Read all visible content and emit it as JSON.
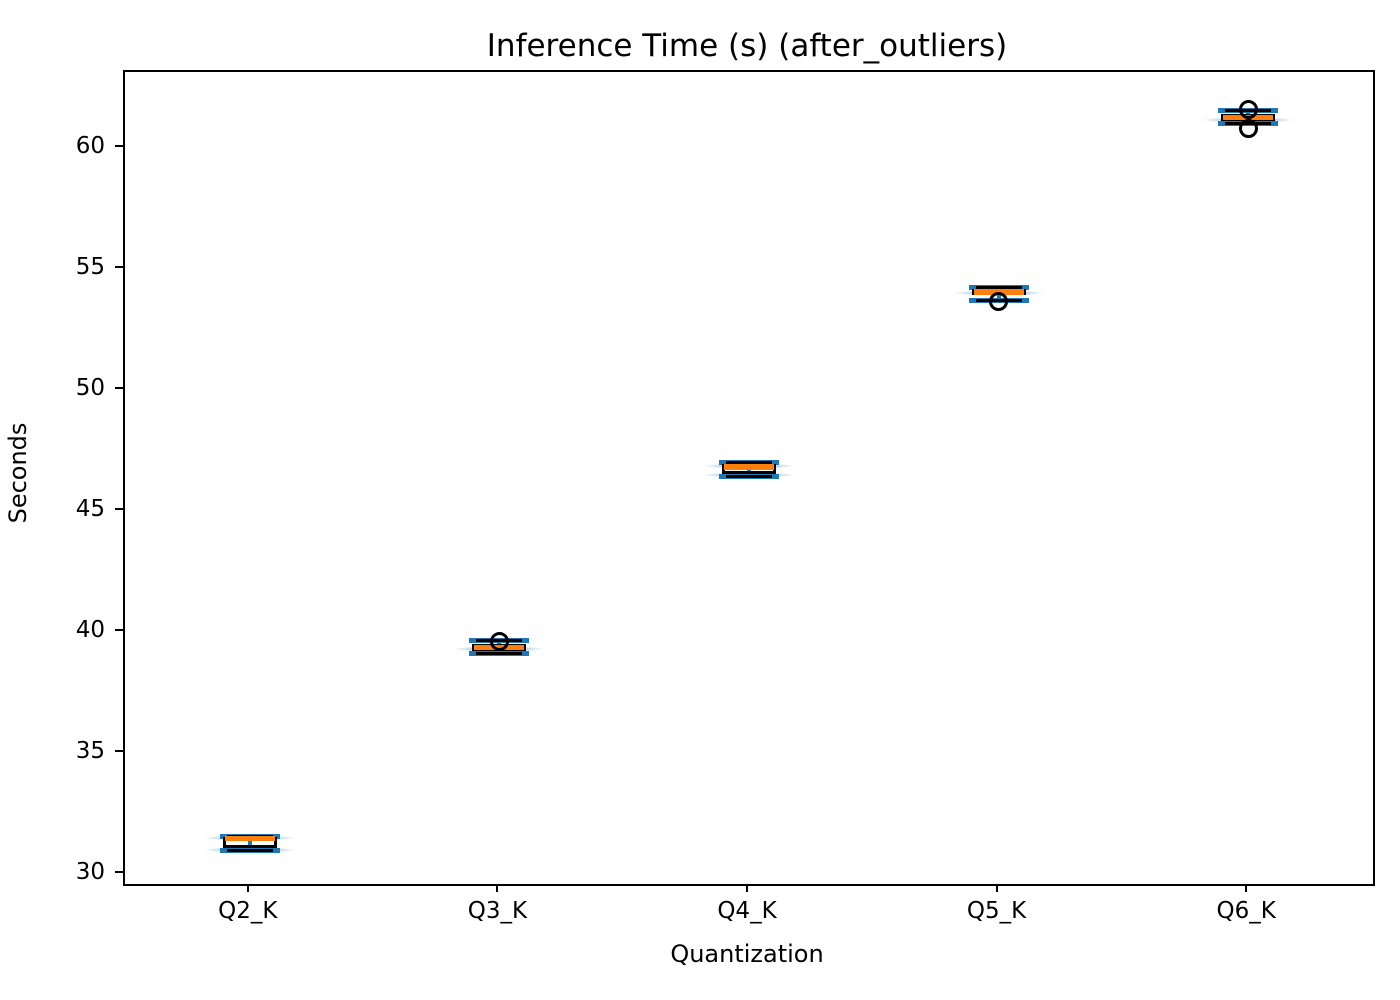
{
  "chart_data": {
    "type": "boxplot",
    "subtype": "boxplot-with-violin-overlay",
    "title": "Inference Time (s) (after_outliers)",
    "xlabel": "Quantization",
    "ylabel": "Seconds",
    "categories": [
      "Q2_K",
      "Q3_K",
      "Q4_K",
      "Q5_K",
      "Q6_K"
    ],
    "yticks": [
      30,
      35,
      40,
      45,
      50,
      55,
      60
    ],
    "ylim": [
      29.6,
      63.15
    ],
    "grid": false,
    "legend": null,
    "colors": {
      "box_edge": "#000000",
      "median": "#ff7f0e",
      "whisker_caps": "#1f77b4",
      "violin_fill_center": "rgba(31,119,180,0.42)",
      "violin_fill_edge": "rgba(31,119,180,0)",
      "outlier_edge": "#000000",
      "background": "#ffffff"
    },
    "stats": [
      {
        "label": "Q2_K",
        "whisker_low": 30.97,
        "q1": 31.07,
        "median": 31.48,
        "q3": 31.55,
        "whisker_high": 31.57,
        "outliers": [],
        "violin_levels": [
          31.5,
          31.0
        ]
      },
      {
        "label": "Q3_K",
        "whisker_low": 39.13,
        "q1": 39.22,
        "median": 39.37,
        "q3": 39.5,
        "whisker_high": 39.65,
        "outliers": [
          39.62
        ],
        "violin_levels": [
          39.32
        ]
      },
      {
        "label": "Q4_K",
        "whisker_low": 46.45,
        "q1": 46.55,
        "median": 46.83,
        "q3": 46.97,
        "whisker_high": 47.02,
        "outliers": [],
        "violin_levels": [
          46.88,
          46.5
        ]
      },
      {
        "label": "Q5_K",
        "whisker_low": 53.7,
        "q1": 53.93,
        "median": 54.05,
        "q3": 54.17,
        "whisker_high": 54.23,
        "outliers": [
          53.67
        ],
        "violin_levels": [
          54.03
        ]
      },
      {
        "label": "Q6_K",
        "whisker_low": 61.03,
        "q1": 61.12,
        "median": 61.27,
        "q3": 61.4,
        "whisker_high": 61.54,
        "outliers": [
          61.62,
          60.8
        ],
        "violin_levels": [
          61.15
        ]
      }
    ]
  }
}
